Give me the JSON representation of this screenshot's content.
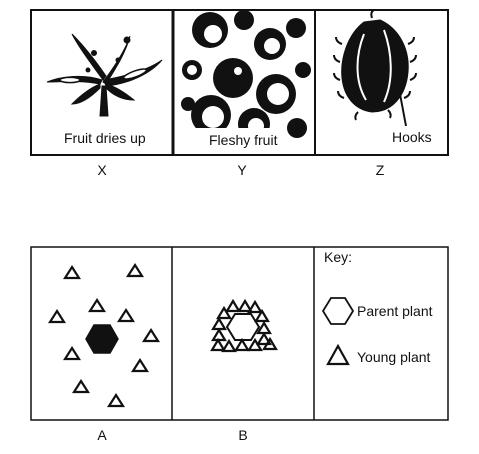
{
  "top_panels": [
    {
      "id": "X",
      "caption": "Fruit dries up",
      "letter": "X"
    },
    {
      "id": "Y",
      "caption": "Fleshy fruit",
      "letter": "Y"
    },
    {
      "id": "Z",
      "caption": "Hooks",
      "letter": "Z"
    }
  ],
  "bottom_panels": [
    {
      "id": "A",
      "letter": "A"
    },
    {
      "id": "B",
      "letter": "B"
    }
  ],
  "key": {
    "title": "Key:",
    "parent_label": "Parent plant",
    "young_label": "Young plant"
  }
}
